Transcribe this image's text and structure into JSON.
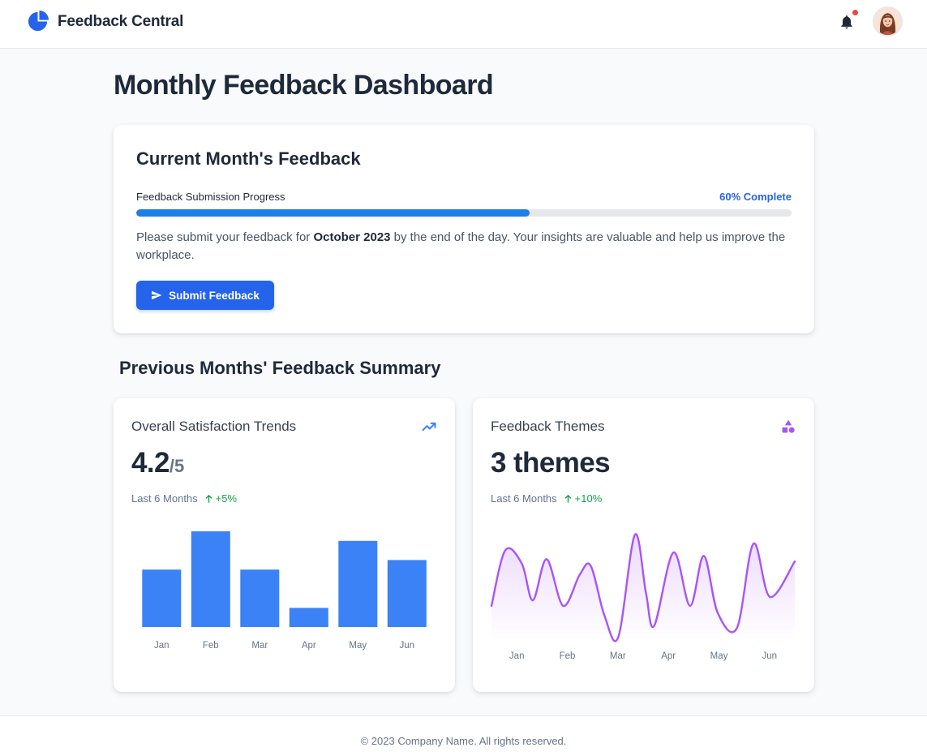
{
  "header": {
    "app_name": "Feedback Central",
    "logo_icon": "pie-logo-icon",
    "notification_icon": "bell-icon",
    "has_notification": true,
    "brand_color": "#2563eb"
  },
  "page": {
    "title": "Monthly Feedback Dashboard"
  },
  "current": {
    "title": "Current Month's Feedback",
    "progress_label": "Feedback Submission Progress",
    "progress_value_label": "60% Complete",
    "progress_percent": 60,
    "message_before": "Please submit your feedback for ",
    "message_month": "October 2023",
    "message_after": " by the end of the day. Your insights are valuable and help us improve the workplace.",
    "submit_label": "Submit Feedback",
    "submit_icon": "send-icon"
  },
  "previous": {
    "title": "Previous Months' Feedback Summary"
  },
  "satisfaction": {
    "heading": "Overall Satisfaction Trends",
    "icon": "trending-up-icon",
    "metric": "4.2",
    "metric_unit": "/5",
    "period": "Last 6 Months",
    "delta": "+5%",
    "delta_icon": "arrow-up-icon"
  },
  "themes": {
    "heading": "Feedback Themes",
    "icon": "shapes-icon",
    "metric": "3 themes",
    "period": "Last 6 Months",
    "delta": "+10%",
    "delta_icon": "arrow-up-icon"
  },
  "footer": {
    "text": "© 2023 Company Name. All rights reserved."
  },
  "chart_data": [
    {
      "type": "bar",
      "categories": [
        "Jan",
        "Feb",
        "Mar",
        "Apr",
        "May",
        "Jun"
      ],
      "values": [
        60,
        100,
        60,
        20,
        90,
        70
      ],
      "ylim": [
        0,
        100
      ],
      "grid": false,
      "color": "#3b82f6"
    },
    {
      "type": "area",
      "categories": [
        "Jan",
        "Feb",
        "Mar",
        "Apr",
        "May",
        "Jun"
      ],
      "x": [
        0,
        0.25,
        0.55,
        0.75,
        1,
        1.3,
        1.6,
        1.8,
        2.05,
        2.3,
        2.6,
        2.8,
        2.95,
        3.3,
        3.6,
        3.85,
        4.1,
        4.45,
        4.75,
        5.05,
        5.5
      ],
      "values": [
        30,
        80,
        68,
        35,
        72,
        30,
        58,
        66,
        21,
        2,
        94,
        42,
        12,
        78,
        30,
        75,
        24,
        10,
        86,
        38,
        70
      ],
      "ylim": [
        0,
        100
      ],
      "grid": false,
      "color": "#a855f7"
    }
  ]
}
